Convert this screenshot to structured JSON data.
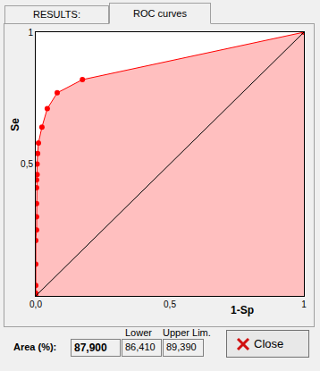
{
  "chart_data": {
    "type": "line",
    "x_label": "1-Sp",
    "y_label": "Se",
    "series": [
      {
        "x": [
          0,
          0,
          0,
          0,
          0,
          0.003,
          0.003,
          0.003,
          0.003,
          0.003,
          0.005,
          0.005,
          0.007,
          0.01,
          0.023,
          0.043,
          0.08,
          0.174,
          1
        ],
        "values": [
          0,
          0.01,
          0.04,
          0.12,
          0.21,
          0.25,
          0.3,
          0.35,
          0.41,
          0.44,
          0.46,
          0.5,
          0.54,
          0.58,
          0.64,
          0.71,
          0.77,
          0.82,
          1
        ],
        "color": "#ff0000",
        "marker": "circle",
        "line_style": "solid"
      },
      {
        "x": [
          0,
          1
        ],
        "values": [
          0,
          1
        ],
        "color": "#000000",
        "marker": "none",
        "line_style": "solid"
      }
    ],
    "xlim": [
      0,
      1
    ],
    "ylim": [
      0,
      1
    ],
    "xticks": [
      {
        "value": 0,
        "label": "0,0"
      },
      {
        "value": 0.5,
        "label": "0,5"
      },
      1
    ],
    "yticks": [
      {
        "value": 0.5,
        "label": "0,5"
      },
      1
    ],
    "grid": false
  },
  "window": {
    "tabs": [
      "RESULTS:",
      "ROC curves"
    ],
    "area_label": "Area (%):",
    "area": "87,900",
    "lower_label": "Lower",
    "lower": "86,410",
    "upper_label": "Upper Lim.",
    "upper": "89,390",
    "button": "Close"
  }
}
